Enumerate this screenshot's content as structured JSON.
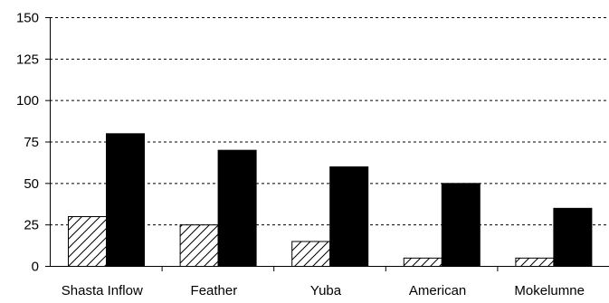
{
  "chart_data": {
    "type": "bar",
    "categories": [
      "Shasta Inflow",
      "Feather",
      "Yuba",
      "American",
      "Mokelumne"
    ],
    "series": [
      {
        "values": [
          30,
          25,
          15,
          5,
          5
        ],
        "pattern": "hatched"
      },
      {
        "values": [
          80,
          70,
          60,
          50,
          35
        ],
        "pattern": "solid",
        "color": "#000000"
      }
    ],
    "ylim": [
      0,
      150
    ],
    "yticks": [
      0,
      25,
      50,
      75,
      100,
      125,
      150
    ],
    "grid": "horizontal dashed",
    "title": "",
    "xlabel": "",
    "ylabel": ""
  }
}
